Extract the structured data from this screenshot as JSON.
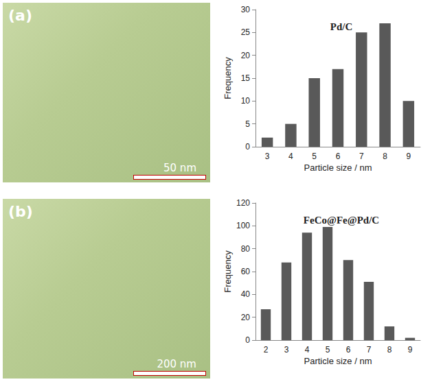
{
  "chart_data": [
    {
      "type": "bar",
      "title": "Pd/C",
      "x_label": "Particle size / nm",
      "y_label": "Frequency",
      "annotations": [
        "(a)",
        "50 nm"
      ],
      "categories": [
        "3",
        "4",
        "5",
        "6",
        "7",
        "8",
        "9"
      ],
      "values": [
        2,
        5,
        15,
        17,
        25,
        27,
        10
      ],
      "color": "#595959",
      "ylim": [
        0,
        30
      ],
      "yticks": [
        0,
        5,
        10,
        15,
        20,
        25,
        30
      ],
      "grid": false
    },
    {
      "type": "bar",
      "title": "FeCo@Fe@Pd/C",
      "x_label": "Particle size / nm",
      "y_label": "Frequency",
      "annotations": [
        "(b)",
        "200 nm"
      ],
      "categories": [
        "2",
        "3",
        "4",
        "5",
        "6",
        "7",
        "8",
        "9"
      ],
      "values": [
        27,
        68,
        94,
        99,
        70,
        51,
        12,
        2
      ],
      "color": "#595959",
      "ylim": [
        0,
        120
      ],
      "yticks": [
        0,
        20,
        40,
        60,
        80,
        100,
        120
      ],
      "grid": false
    }
  ]
}
